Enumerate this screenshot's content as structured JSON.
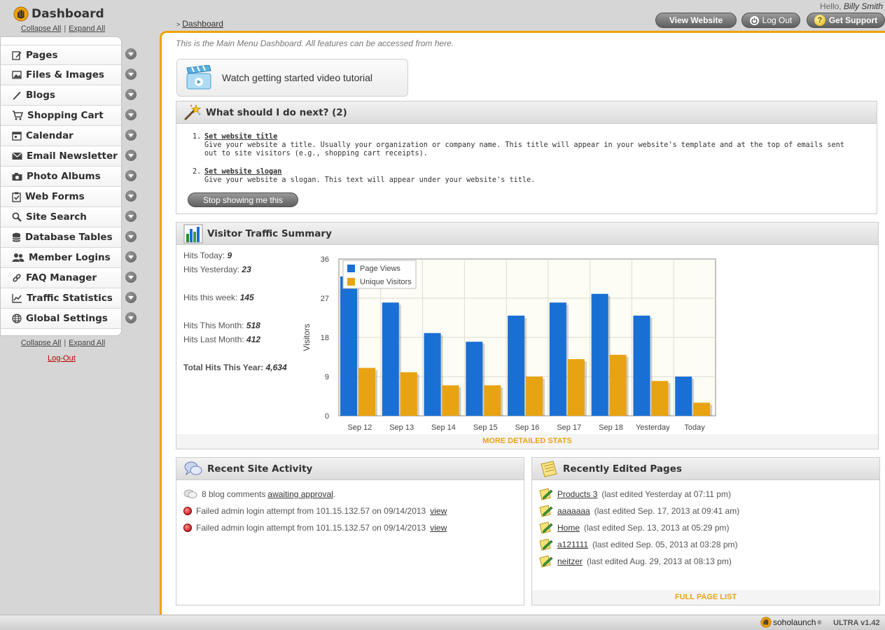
{
  "header": {
    "title": "Dashboard",
    "collapse_all": "Collapse All",
    "expand_all": "Expand All",
    "separator": "|",
    "breadcrumb_arrow": ">",
    "breadcrumb": "Dashboard",
    "hello": "Hello,",
    "user_name": "Billy Smith",
    "view_website": "View Website",
    "log_out": "Log Out",
    "get_support": "Get Support",
    "support_glyph": "?"
  },
  "sidebar": {
    "items": [
      {
        "label": "Pages",
        "icon": "page-edit-icon"
      },
      {
        "label": "Files & Images",
        "icon": "image-icon"
      },
      {
        "label": "Blogs",
        "icon": "pen-icon"
      },
      {
        "label": "Shopping Cart",
        "icon": "cart-icon"
      },
      {
        "label": "Calendar",
        "icon": "calendar-icon"
      },
      {
        "label": "Email Newsletter",
        "icon": "envelope-icon"
      },
      {
        "label": "Photo Albums",
        "icon": "camera-icon"
      },
      {
        "label": "Web Forms",
        "icon": "clipboard-check-icon"
      },
      {
        "label": "Site Search",
        "icon": "magnifier-icon"
      },
      {
        "label": "Database Tables",
        "icon": "database-icon"
      },
      {
        "label": "Member Logins",
        "icon": "users-icon"
      },
      {
        "label": "FAQ Manager",
        "icon": "link-icon"
      },
      {
        "label": "Traffic Statistics",
        "icon": "line-chart-icon"
      },
      {
        "label": "Global Settings",
        "icon": "globe-icon"
      }
    ],
    "logout": "Log-Out"
  },
  "main": {
    "intro": "This is the Main Menu Dashboard. All features can be accessed from here.",
    "video_label": "Watch getting started video tutorial",
    "next": {
      "title": "What should I do next? (2)",
      "items": [
        {
          "num": "1.",
          "title": "Set website title",
          "desc": "Give your website a title. Usually your organization or company name. This title will appear in your website's template and at the top of emails sent out to site visitors (e.g., shopping cart receipts)."
        },
        {
          "num": "2.",
          "title": "Set website slogan",
          "desc": "Give your website a slogan. This text will appear under your website's title."
        }
      ],
      "stop_button": "Stop showing me this"
    },
    "traffic": {
      "title": "Visitor Traffic Summary",
      "hits_today_label": "Hits Today:",
      "hits_today": "9",
      "hits_yesterday_label": "Hits Yesterday:",
      "hits_yesterday": "23",
      "hits_week_label": "Hits this week:",
      "hits_week": "145",
      "hits_month_label": "Hits This Month:",
      "hits_month": "518",
      "hits_last_month_label": "Hits Last Month:",
      "hits_last_month": "412",
      "total_year_label": "Total Hits This Year:",
      "total_year": "4,634",
      "more_stats": "MORE DETAILED STATS"
    },
    "activity": {
      "title": "Recent Site Activity",
      "row1_pre": "8 blog comments",
      "row1_link": "awaiting approval",
      "row1_post": ".",
      "rows": [
        {
          "text": "Failed admin login attempt from 101.15.132.57 on 09/14/2013",
          "link": "view"
        },
        {
          "text": "Failed admin login attempt from 101.15.132.57 on 09/14/2013",
          "link": "view"
        }
      ]
    },
    "pages": {
      "title": "Recently Edited Pages",
      "items": [
        {
          "name": "Products 3",
          "info": "(last edited Yesterday at 07:11 pm)"
        },
        {
          "name": "aaaaaaa",
          "info": "(last edited Sep. 17, 2013 at 09:41 am)"
        },
        {
          "name": "Home",
          "info": "(last edited Sep. 13, 2013 at 05:29 pm)"
        },
        {
          "name": "a121111",
          "info": "(last edited Sep. 05, 2013 at 03:28 pm)"
        },
        {
          "name": "neitzer",
          "info": "(last edited Aug. 29, 2013 at 08:13 pm)"
        }
      ],
      "full_list": "FULL PAGE LIST"
    }
  },
  "footer": {
    "brand": "soholaunch",
    "registered": "®",
    "version": "ULTRA v1.42"
  },
  "colors": {
    "accent": "#f0a20b",
    "page_views": "#1a6fd4",
    "unique_visitors": "#e8a313"
  },
  "chart_data": {
    "type": "bar",
    "title": "",
    "xlabel": "",
    "ylabel": "Visitors",
    "categories": [
      "Sep 12",
      "Sep 13",
      "Sep 14",
      "Sep 15",
      "Sep 16",
      "Sep 17",
      "Sep 18",
      "Yesterday",
      "Today"
    ],
    "series": [
      {
        "name": "Page Views",
        "values": [
          32,
          26,
          19,
          17,
          23,
          26,
          28,
          23,
          9
        ]
      },
      {
        "name": "Unique Visitors",
        "values": [
          11,
          10,
          7,
          7,
          9,
          13,
          14,
          8,
          3
        ]
      }
    ],
    "ylim": [
      0,
      36
    ],
    "yticks": [
      0,
      9,
      18,
      27,
      36
    ],
    "grid": true,
    "legend": "top-left"
  }
}
